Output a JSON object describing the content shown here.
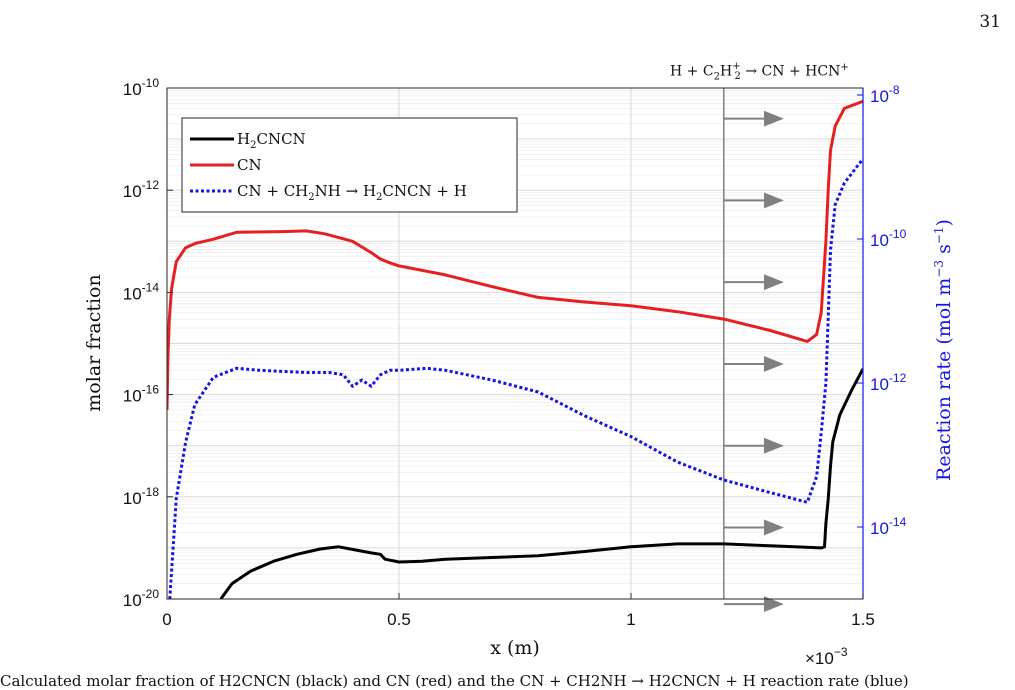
{
  "page_number": "31",
  "annotation": "H + C2H2+ → CN + HCN+",
  "caption": "Calculated molar fraction of H2CNCN (black) and CN (red) and the CN + CH2NH → H2CNCN + H reaction rate (blue)",
  "chart_data": {
    "type": "line",
    "xlabel": "x (m)",
    "ylabel": "molar fraction",
    "y2label": "Reaction rate (mol m−3 s−1)",
    "x_multiplier": "×10−3",
    "xlim": [
      0,
      0.0015
    ],
    "ylim": [
      1e-20,
      1e-10
    ],
    "y2lim": [
      1e-15,
      1.25e-08
    ],
    "yscale": "log",
    "y2scale": "log",
    "x_ticks": [
      {
        "v": 0,
        "label": "0"
      },
      {
        "v": 0.0005,
        "label": "0.5"
      },
      {
        "v": 0.001,
        "label": "1"
      },
      {
        "v": 0.0015,
        "label": "1.5"
      }
    ],
    "y_ticks": [
      {
        "v": -20,
        "base": "10",
        "exp": "-20"
      },
      {
        "v": -18,
        "base": "10",
        "exp": "-18"
      },
      {
        "v": -16,
        "base": "10",
        "exp": "-16"
      },
      {
        "v": -14,
        "base": "10",
        "exp": "-14"
      },
      {
        "v": -12,
        "base": "10",
        "exp": "-12"
      },
      {
        "v": -10,
        "base": "10",
        "exp": "-10"
      }
    ],
    "y2_ticks": [
      {
        "v": -14,
        "base": "10",
        "exp": "-14"
      },
      {
        "v": -12,
        "base": "10",
        "exp": "-12"
      },
      {
        "v": -10,
        "base": "10",
        "exp": "-10"
      },
      {
        "v": -8,
        "base": "10",
        "exp": "-8"
      }
    ],
    "grid": true,
    "legend_position": "top-left",
    "vertical_line_x": 0.0012,
    "arrow_y_log10": [
      -10.6,
      -12.2,
      -13.8,
      -15.4,
      -17.0,
      -18.6,
      -20.1
    ],
    "arrow_color": "#808080",
    "series": [
      {
        "name": "H2CNCN",
        "axis": "left",
        "color": "#000000",
        "style": "solid",
        "x": [
          0.000116,
          0.00014,
          0.00018,
          0.00023,
          0.00028,
          0.00033,
          0.00037,
          0.000395,
          0.00044,
          0.00046,
          0.00047,
          0.0005,
          0.00055,
          0.0006,
          0.0007,
          0.0008,
          0.0009,
          0.001,
          0.0011,
          0.0012,
          0.0013,
          0.00141,
          0.001417,
          0.00142,
          0.001425,
          0.00143,
          0.001435,
          0.00145,
          0.001475,
          0.0015
        ],
        "y": [
          1e-20,
          2e-20,
          3.5e-20,
          5.5e-20,
          7.5e-20,
          9.5e-20,
          1.05e-19,
          9.5e-20,
          8e-20,
          7.5e-20,
          6e-20,
          5.3e-20,
          5.5e-20,
          6e-20,
          6.5e-20,
          7e-20,
          8.5e-20,
          1.05e-19,
          1.2e-19,
          1.2e-19,
          1.1e-19,
          1e-19,
          1.05e-19,
          3e-19,
          9e-19,
          4e-18,
          1.2e-17,
          4e-17,
          1.2e-16,
          3.2e-16
        ]
      },
      {
        "name": "CN",
        "axis": "left",
        "color": "#e62020",
        "style": "solid",
        "x": [
          0.0,
          2e-06,
          5e-06,
          1e-05,
          2e-05,
          4e-05,
          6e-05,
          0.0001,
          0.00015,
          0.00025,
          0.0003,
          0.00034,
          0.0004,
          0.00044,
          0.00046,
          0.00048,
          0.0005,
          0.0006,
          0.0007,
          0.0008,
          0.0009,
          0.001,
          0.0011,
          0.0012,
          0.0013,
          0.00138,
          0.0014,
          0.00141,
          0.00142,
          0.001425,
          0.00143,
          0.00144,
          0.00146,
          0.0015
        ],
        "y": [
          5e-17,
          5e-16,
          3e-15,
          1.2e-14,
          4e-14,
          7.5e-14,
          9e-14,
          1.1e-13,
          1.5e-13,
          1.55e-13,
          1.6e-13,
          1.4e-13,
          1e-13,
          6e-14,
          4.5e-14,
          3.8e-14,
          3.3e-14,
          2.2e-14,
          1.3e-14,
          8e-15,
          6.5e-15,
          5.5e-15,
          4.2e-15,
          3e-15,
          1.8e-15,
          1.1e-15,
          1.5e-15,
          4e-15,
          1e-13,
          1e-12,
          6e-12,
          1.8e-11,
          4e-11,
          5.5e-11
        ]
      },
      {
        "name": "CN + CH2NH → H2CNCN + H",
        "axis": "right",
        "color": "#1414e6",
        "style": "dotted",
        "x": [
          6e-06,
          2e-05,
          4e-05,
          6e-05,
          0.0001,
          0.00015,
          0.0002,
          0.0003,
          0.00035,
          0.00038,
          0.0004,
          0.00042,
          0.00044,
          0.00046,
          0.00048,
          0.0005,
          0.00056,
          0.0006,
          0.0007,
          0.0008,
          0.0009,
          0.001,
          0.0011,
          0.0012,
          0.0013,
          0.00138,
          0.0014,
          0.00141,
          0.00142,
          0.001425,
          0.00143,
          0.00144,
          0.00146,
          0.0015
        ],
        "y": [
          1e-15,
          2.5e-14,
          1.5e-13,
          5e-13,
          1.2e-12,
          1.6e-12,
          1.5e-12,
          1.4e-12,
          1.4e-12,
          1.3e-12,
          9e-13,
          1.1e-12,
          9e-13,
          1.3e-12,
          1.5e-12,
          1.5e-12,
          1.6e-12,
          1.5e-12,
          1.1e-12,
          7.5e-13,
          3.5e-13,
          1.8e-13,
          8e-14,
          4.5e-14,
          3e-14,
          2.2e-14,
          5e-14,
          2e-13,
          1e-12,
          8e-12,
          7e-11,
          3e-10,
          6e-10,
          1.3e-09
        ]
      }
    ],
    "legend": [
      {
        "label": "H2CNCN",
        "color": "#000000",
        "style": "solid"
      },
      {
        "label": "CN",
        "color": "#e62020",
        "style": "solid"
      },
      {
        "label": "CN + CH2NH → H2CNCN + H",
        "color": "#1414e6",
        "style": "dotted"
      }
    ]
  }
}
